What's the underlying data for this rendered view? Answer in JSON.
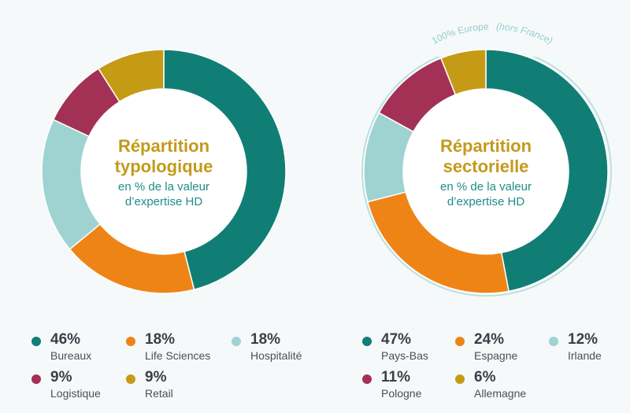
{
  "colors": {
    "teal": "#117e76",
    "orange": "#ef8416",
    "lightblue": "#9ed3d2",
    "plum": "#a33155",
    "gold": "#c59b15",
    "title_gold": "#c39a1c",
    "subtitle_teal": "#1e8d88"
  },
  "chart_data": [
    {
      "type": "pie",
      "donut": true,
      "center_title": [
        "Répartition",
        "typologique"
      ],
      "center_subtitle": [
        "en % de la valeur",
        "d’expertise HD"
      ],
      "slices": [
        {
          "label": "Bureaux",
          "value": 46,
          "display": "46%",
          "color": "#117e76"
        },
        {
          "label": "Life Sciences",
          "value": 18,
          "display": "18%",
          "color": "#ef8416"
        },
        {
          "label": "Hospitalité",
          "value": 18,
          "display": "18%",
          "color": "#9ed3d2"
        },
        {
          "label": "Logistique",
          "value": 9,
          "display": "9%",
          "color": "#a33155"
        },
        {
          "label": "Retail",
          "value": 9,
          "display": "9%",
          "color": "#c59b15"
        }
      ]
    },
    {
      "type": "pie",
      "donut": true,
      "ring_label": "100% Europe",
      "ring_label_note": "(hors France)",
      "center_title": [
        "Répartition",
        "sectorielle"
      ],
      "center_subtitle": [
        "en % de la valeur",
        "d’expertise HD"
      ],
      "slices": [
        {
          "label": "Pays-Bas",
          "value": 47,
          "display": "47%",
          "color": "#117e76"
        },
        {
          "label": "Espagne",
          "value": 24,
          "display": "24%",
          "color": "#ef8416"
        },
        {
          "label": "Irlande",
          "value": 12,
          "display": "12%",
          "color": "#9ed3d2"
        },
        {
          "label": "Pologne",
          "value": 11,
          "display": "11%",
          "color": "#a33155"
        },
        {
          "label": "Allemagne",
          "value": 6,
          "display": "6%",
          "color": "#c59b15"
        }
      ]
    }
  ]
}
